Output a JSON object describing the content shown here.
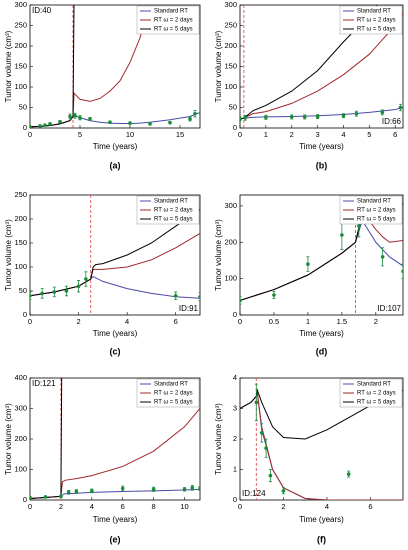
{
  "chart_data": [
    {
      "type": "line",
      "caption": "(a)",
      "x_label": "Time (years)",
      "y_label": "Tumor volume (cm³)",
      "annotation": "ID:40",
      "annotation_corner": "upper left",
      "legend": "upper right",
      "xlim": [
        0,
        17
      ],
      "xticks": [
        0,
        5,
        10,
        15
      ],
      "ylim": [
        0,
        300
      ],
      "yticks": [
        0,
        50,
        100,
        150,
        200,
        250,
        300
      ],
      "treatment_start": 4.3,
      "series": [
        {
          "name": "Standard RT",
          "color": "#4b4ba8",
          "x": [
            0,
            1,
            2,
            3,
            4,
            4.3,
            4.5,
            5,
            6,
            7,
            8,
            9,
            10,
            11,
            12,
            13,
            14,
            15,
            16,
            17
          ],
          "values": [
            3,
            4,
            6,
            10,
            18,
            28,
            30,
            25,
            18,
            14,
            12,
            11,
            11,
            12,
            14,
            17,
            20,
            24,
            28,
            38
          ]
        },
        {
          "name": "RT ω = 2 days",
          "color": "#a0282d",
          "x": [
            0,
            1,
            2,
            3,
            4,
            4.3,
            4.4,
            5,
            6,
            7,
            8,
            9,
            10,
            11,
            12
          ],
          "values": [
            3,
            4,
            6,
            10,
            18,
            28,
            85,
            70,
            65,
            72,
            90,
            115,
            160,
            220,
            300
          ]
        },
        {
          "name": "RT ω = 5 days",
          "color": "#000000",
          "x": [
            0,
            1,
            2,
            3,
            4,
            4.3,
            4.4
          ],
          "values": [
            3,
            4,
            6,
            10,
            18,
            28,
            300
          ]
        }
      ],
      "measurements": {
        "color": "#1a8c3a",
        "x": [
          0,
          1,
          1.5,
          2,
          3,
          4,
          4.5,
          5,
          6,
          8,
          10,
          12,
          14,
          16,
          16.5
        ],
        "values": [
          3,
          5,
          7,
          10,
          15,
          28,
          30,
          25,
          22,
          14,
          12,
          10,
          13,
          22,
          35
        ],
        "errors": [
          2,
          2,
          2,
          3,
          3,
          6,
          6,
          5,
          4,
          3,
          3,
          3,
          3,
          5,
          8
        ]
      }
    },
    {
      "type": "line",
      "caption": "(b)",
      "x_label": "Time (years)",
      "y_label": "Tumor volume (cm³)",
      "annotation": "ID:66",
      "annotation_corner": "lower right",
      "legend": "upper right",
      "xlim": [
        0,
        6.3
      ],
      "xticks": [
        0,
        1,
        2,
        3,
        4,
        5,
        6
      ],
      "ylim": [
        0,
        300
      ],
      "yticks": [
        0,
        50,
        100,
        150,
        200,
        250,
        300
      ],
      "treatment_start": 0.15,
      "series": [
        {
          "name": "Standard RT",
          "color": "#4b4ba8",
          "x": [
            0,
            0.15,
            0.5,
            1,
            2,
            3,
            4,
            5,
            6,
            6.3
          ],
          "values": [
            22,
            24,
            26,
            27,
            28,
            30,
            33,
            38,
            45,
            50
          ]
        },
        {
          "name": "RT ω = 2 days",
          "color": "#a0282d",
          "x": [
            0,
            0.15,
            0.5,
            1,
            2,
            3,
            4,
            5,
            6,
            6.3
          ],
          "values": [
            22,
            24,
            35,
            40,
            60,
            90,
            130,
            180,
            250,
            280
          ]
        },
        {
          "name": "RT ω = 5 days",
          "color": "#000000",
          "x": [
            0,
            0.15,
            0.5,
            1,
            2,
            3,
            4,
            5,
            5.3
          ],
          "values": [
            22,
            24,
            42,
            55,
            90,
            140,
            210,
            275,
            300
          ]
        }
      ],
      "measurements": {
        "color": "#1a8c3a",
        "x": [
          0,
          0.2,
          1,
          2,
          2.5,
          3,
          4,
          4.5,
          5.5,
          6.2
        ],
        "values": [
          22,
          25,
          26,
          27,
          27,
          28,
          30,
          35,
          38,
          50
        ],
        "errors": [
          5,
          6,
          5,
          5,
          5,
          5,
          5,
          6,
          6,
          8
        ]
      }
    },
    {
      "type": "line",
      "caption": "(c)",
      "x_label": "Time (years)",
      "y_label": "Tumor volume (cm³)",
      "annotation": "ID:91",
      "annotation_corner": "lower right",
      "legend": "upper right",
      "xlim": [
        0,
        7
      ],
      "xticks": [
        0,
        2,
        4,
        6
      ],
      "ylim": [
        0,
        250
      ],
      "yticks": [
        0,
        50,
        100,
        150,
        200,
        250
      ],
      "treatment_start": 2.5,
      "series": [
        {
          "name": "Standard RT",
          "color": "#4b4ba8",
          "x": [
            0,
            1,
            2,
            2.5,
            2.6,
            3,
            4,
            5,
            6,
            7
          ],
          "values": [
            40,
            48,
            60,
            75,
            80,
            70,
            55,
            45,
            38,
            35
          ]
        },
        {
          "name": "RT ω = 2 days",
          "color": "#a0282d",
          "x": [
            0,
            1,
            2,
            2.5,
            2.6,
            3,
            4,
            5,
            6,
            7
          ],
          "values": [
            40,
            48,
            60,
            75,
            95,
            95,
            100,
            115,
            140,
            170
          ]
        },
        {
          "name": "RT ω = 5 days",
          "color": "#000000",
          "x": [
            0,
            1,
            2,
            2.5,
            2.6,
            2.7,
            3,
            4,
            5,
            6,
            7
          ],
          "values": [
            40,
            48,
            60,
            75,
            100,
            105,
            107,
            125,
            150,
            185,
            220
          ]
        }
      ],
      "measurements": {
        "color": "#1a8c3a",
        "x": [
          0,
          0.5,
          1,
          1.5,
          2,
          2.3,
          6,
          7
        ],
        "values": [
          40,
          45,
          48,
          50,
          60,
          75,
          40,
          38
        ],
        "errors": [
          8,
          10,
          10,
          10,
          12,
          15,
          8,
          8
        ]
      }
    },
    {
      "type": "line",
      "caption": "(d)",
      "x_label": "Time (years)",
      "y_label": "Tumor volume (cm³)",
      "annotation": "ID:107",
      "annotation_corner": "lower right",
      "legend": "upper right",
      "xlim": [
        0,
        2.4
      ],
      "xticks": [
        0,
        0.5,
        1,
        1.5,
        2
      ],
      "ylim": [
        0,
        330
      ],
      "yticks": [
        0,
        100,
        200,
        300
      ],
      "treatment_start": 1.7,
      "series": [
        {
          "name": "Standard RT",
          "color": "#4b4ba8",
          "x": [
            0,
            0.5,
            1,
            1.5,
            1.7,
            1.8,
            1.9,
            2,
            2.2,
            2.4
          ],
          "values": [
            40,
            70,
            110,
            170,
            200,
            260,
            230,
            200,
            160,
            135
          ]
        },
        {
          "name": "RT ω = 2 days",
          "color": "#a0282d",
          "x": [
            0,
            0.5,
            1,
            1.5,
            1.7,
            1.8,
            1.9,
            2,
            2.1,
            2.2,
            2.4
          ],
          "values": [
            40,
            70,
            110,
            170,
            200,
            275,
            260,
            235,
            215,
            200,
            205
          ]
        },
        {
          "name": "RT ω = 5 days",
          "color": "#000000",
          "x": [
            0,
            0.5,
            1,
            1.5,
            1.7,
            1.8,
            1.9,
            2,
            2.2,
            2.4
          ],
          "values": [
            40,
            70,
            110,
            170,
            200,
            280,
            300,
            310,
            300,
            305
          ]
        }
      ],
      "measurements": {
        "color": "#1a8c3a",
        "x": [
          0,
          0.5,
          1,
          1.5,
          1.75,
          2.1,
          2.4
        ],
        "values": [
          40,
          55,
          140,
          220,
          245,
          160,
          120
        ],
        "errors": [
          10,
          10,
          20,
          40,
          30,
          25,
          20
        ]
      }
    },
    {
      "type": "line",
      "caption": "(e)",
      "x_label": "Time (years)",
      "y_label": "Tumor volume (cm³)",
      "annotation": "ID:121",
      "annotation_corner": "upper left",
      "legend": "upper right",
      "xlim": [
        0,
        11
      ],
      "xticks": [
        0,
        2,
        4,
        6,
        8,
        10
      ],
      "ylim": [
        0,
        400
      ],
      "yticks": [
        0,
        100,
        200,
        300,
        400
      ],
      "treatment_start": 2,
      "series": [
        {
          "name": "Standard RT",
          "color": "#4b4ba8",
          "x": [
            0,
            1,
            2,
            2.2,
            3,
            4,
            6,
            8,
            10,
            11
          ],
          "values": [
            5,
            8,
            12,
            20,
            22,
            25,
            28,
            30,
            33,
            35
          ]
        },
        {
          "name": "RT ω = 2 days",
          "color": "#a0282d",
          "x": [
            0,
            1,
            2,
            2.1,
            2.3,
            3,
            4,
            6,
            8,
            10,
            11
          ],
          "values": [
            5,
            8,
            12,
            60,
            65,
            70,
            80,
            110,
            160,
            240,
            300
          ]
        },
        {
          "name": "RT ω = 5 days",
          "color": "#000000",
          "x": [
            0,
            1,
            2,
            2.05
          ],
          "values": [
            5,
            8,
            12,
            400
          ]
        }
      ],
      "measurements": {
        "color": "#1a8c3a",
        "x": [
          0,
          1,
          2,
          2.5,
          3,
          4,
          6,
          8,
          10,
          10.5,
          11
        ],
        "values": [
          8,
          10,
          12,
          25,
          28,
          30,
          38,
          35,
          35,
          40,
          38
        ],
        "errors": [
          3,
          3,
          4,
          6,
          6,
          6,
          8,
          7,
          6,
          8,
          7
        ]
      }
    },
    {
      "type": "line",
      "caption": "(f)",
      "x_label": "Time (years)",
      "y_label": "Tumor volume (cm³)",
      "annotation": "ID:124",
      "annotation_corner": "lower left",
      "legend": "upper right",
      "xlim": [
        0,
        7.5
      ],
      "xticks": [
        0,
        2,
        4,
        6
      ],
      "ylim": [
        0,
        4
      ],
      "yticks": [
        0,
        1,
        2,
        3,
        4
      ],
      "treatment_start": 0.75,
      "series": [
        {
          "name": "Standard RT",
          "color": "#4b4ba8",
          "x": [
            0,
            0.5,
            0.75,
            0.8,
            1,
            1.5,
            2,
            3,
            4,
            7.5
          ],
          "values": [
            3,
            3.2,
            3.4,
            3.5,
            2.3,
            1,
            0.4,
            0.05,
            0,
            0
          ]
        },
        {
          "name": "RT ω = 2 days",
          "color": "#a0282d",
          "x": [
            0,
            0.5,
            0.75,
            0.8,
            1,
            1.5,
            2,
            3,
            4,
            7.5
          ],
          "values": [
            3,
            3.2,
            3.4,
            3.5,
            2.4,
            1,
            0.4,
            0.05,
            0,
            0
          ]
        },
        {
          "name": "RT ω = 5 days",
          "color": "#000000",
          "x": [
            0,
            0.5,
            0.75,
            0.8,
            1,
            1.5,
            2,
            3,
            4,
            5,
            6,
            7.5
          ],
          "values": [
            3,
            3.2,
            3.4,
            3.6,
            3.2,
            2.4,
            2.05,
            2,
            2.3,
            2.7,
            3.1,
            3.6
          ]
        }
      ],
      "measurements": {
        "color": "#1a8c3a",
        "x": [
          0.75,
          1,
          1.2,
          1.4,
          2,
          5
        ],
        "values": [
          3.2,
          2.2,
          1.7,
          0.8,
          0.3,
          0.85
        ],
        "errors": [
          0.6,
          0.3,
          0.3,
          0.2,
          0.1,
          0.1
        ]
      }
    }
  ]
}
